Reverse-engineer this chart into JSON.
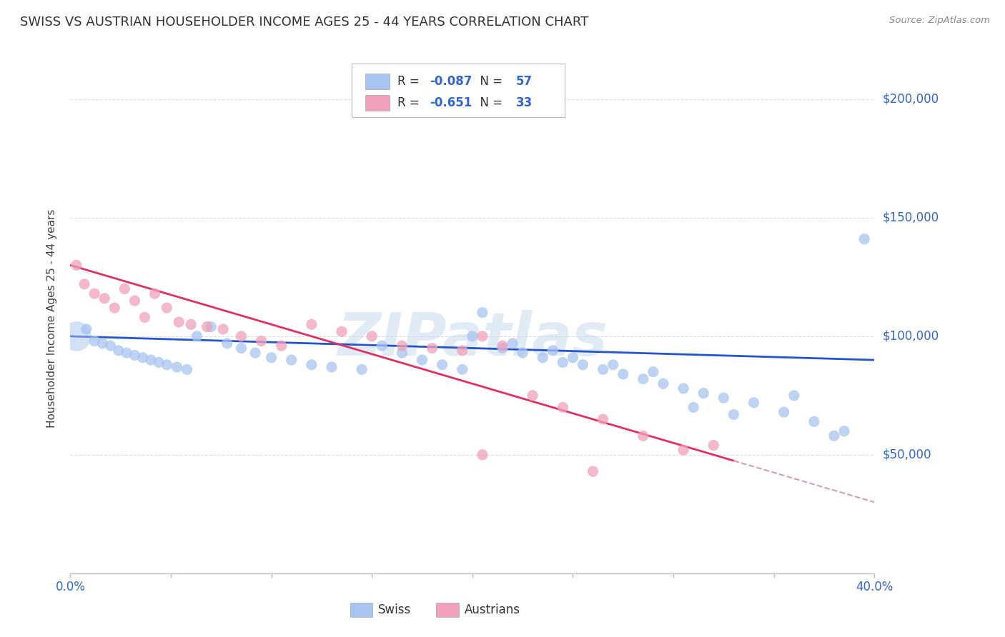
{
  "title": "SWISS VS AUSTRIAN HOUSEHOLDER INCOME AGES 25 - 44 YEARS CORRELATION CHART",
  "source": "Source: ZipAtlas.com",
  "ylabel": "Householder Income Ages 25 - 44 years",
  "ytick_labels": [
    "$50,000",
    "$100,000",
    "$150,000",
    "$200,000"
  ],
  "ytick_values": [
    50000,
    100000,
    150000,
    200000
  ],
  "legend_swiss_R": "-0.087",
  "legend_swiss_N": "57",
  "legend_austrians_R": "-0.651",
  "legend_austrians_N": "33",
  "swiss_color": "#a8c4f0",
  "austrian_color": "#f0a0b8",
  "swiss_line_color": "#2255cc",
  "austrian_line_color": "#e03060",
  "dashed_line_color": "#d0a0b0",
  "background_color": "#ffffff",
  "swiss_x": [
    0.3,
    0.8,
    1.2,
    1.6,
    2.0,
    2.4,
    2.8,
    3.2,
    3.6,
    4.0,
    4.4,
    4.8,
    5.3,
    5.8,
    6.3,
    7.0,
    7.8,
    8.5,
    9.2,
    10.0,
    11.0,
    12.0,
    13.0,
    14.5,
    15.5,
    16.5,
    17.5,
    18.5,
    19.5,
    20.5,
    21.5,
    22.5,
    23.5,
    24.5,
    25.5,
    26.5,
    27.5,
    28.5,
    29.5,
    30.5,
    31.5,
    32.5,
    34.0,
    35.5,
    37.0,
    38.5,
    20.0,
    22.0,
    24.0,
    25.0,
    27.0,
    29.0,
    31.0,
    33.0,
    36.0,
    38.0,
    39.5
  ],
  "swiss_y": [
    100000,
    103000,
    98000,
    97000,
    96000,
    94000,
    93000,
    92000,
    91000,
    90000,
    89000,
    88000,
    87000,
    86000,
    100000,
    104000,
    97000,
    95000,
    93000,
    91000,
    90000,
    88000,
    87000,
    86000,
    96000,
    93000,
    90000,
    88000,
    86000,
    110000,
    95000,
    93000,
    91000,
    89000,
    88000,
    86000,
    84000,
    82000,
    80000,
    78000,
    76000,
    74000,
    72000,
    68000,
    64000,
    60000,
    100000,
    97000,
    94000,
    91000,
    88000,
    85000,
    70000,
    67000,
    75000,
    58000,
    141000
  ],
  "austrian_x": [
    0.3,
    0.7,
    1.2,
    1.7,
    2.2,
    2.7,
    3.2,
    3.7,
    4.2,
    4.8,
    5.4,
    6.0,
    6.8,
    7.6,
    8.5,
    9.5,
    10.5,
    12.0,
    13.5,
    15.0,
    16.5,
    18.0,
    19.5,
    20.5,
    21.5,
    23.0,
    24.5,
    26.5,
    28.5,
    30.5,
    32.0,
    20.5,
    26.0
  ],
  "austrian_y": [
    130000,
    122000,
    118000,
    116000,
    112000,
    120000,
    115000,
    108000,
    118000,
    112000,
    106000,
    105000,
    104000,
    103000,
    100000,
    98000,
    96000,
    105000,
    102000,
    100000,
    96000,
    95000,
    94000,
    100000,
    96000,
    75000,
    70000,
    65000,
    58000,
    52000,
    54000,
    50000,
    43000
  ],
  "xmin": 0.0,
  "xmax": 40.0,
  "ymin": 0,
  "ymax": 215000,
  "watermark_text": "ZIPatlas",
  "swiss_intercept": 100000,
  "swiss_slope": -250,
  "austrian_intercept": 130000,
  "austrian_slope": -2500
}
